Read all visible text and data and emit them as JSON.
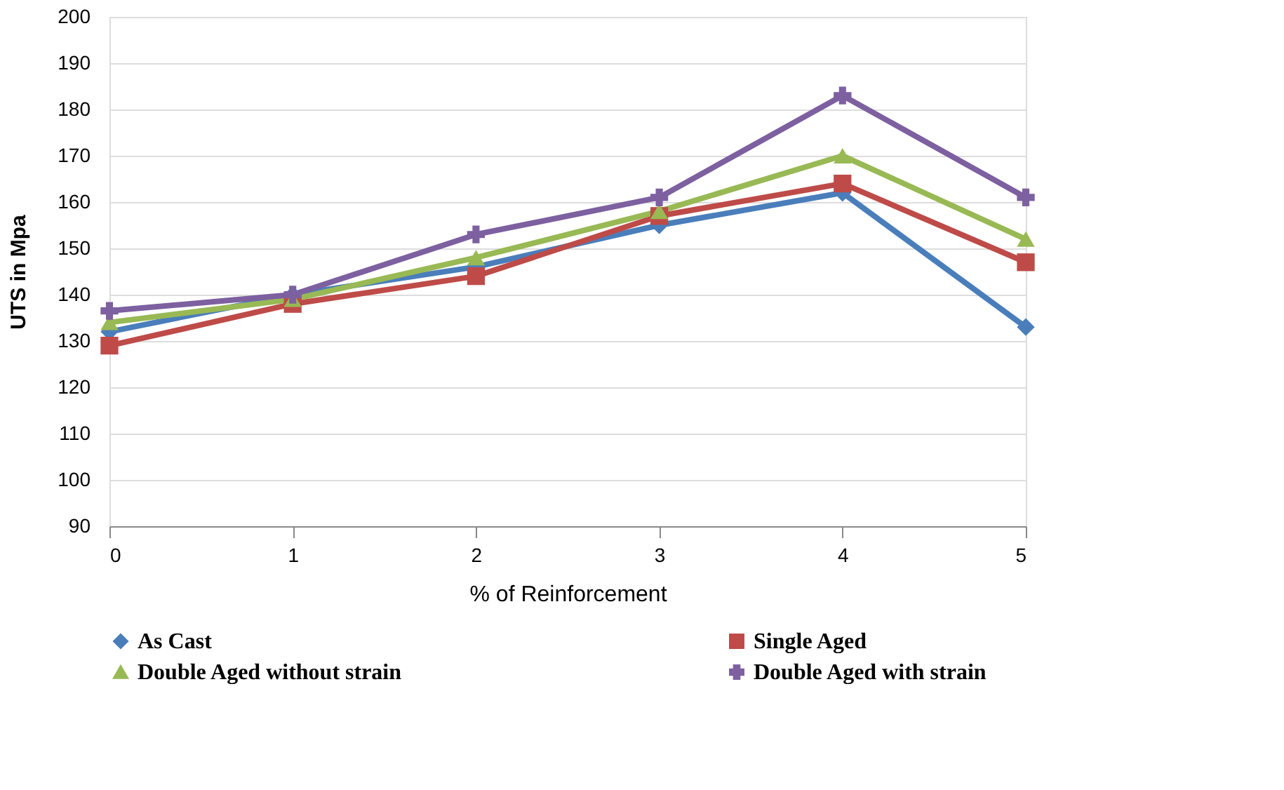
{
  "chart_data": {
    "type": "line",
    "xlabel": "% of Reinforcement",
    "ylabel": "UTS in Mpa",
    "categories": [
      "0",
      "1",
      "2",
      "3",
      "4",
      "5"
    ],
    "series": [
      {
        "name": "As Cast",
        "color": "#4a7ebb",
        "marker": "diamond",
        "values": [
          132,
          140,
          146,
          155,
          162,
          133
        ]
      },
      {
        "name": "Single Aged",
        "color": "#be4b48",
        "marker": "square",
        "values": [
          129,
          138,
          144,
          157,
          164,
          147
        ]
      },
      {
        "name": "Double Aged without strain",
        "color": "#98b954",
        "marker": "triangle",
        "values": [
          134,
          139,
          148,
          158,
          170,
          152
        ]
      },
      {
        "name": "Double Aged with strain",
        "color": "#7d60a0",
        "marker": "cross",
        "values": [
          136.5,
          140,
          153,
          161,
          183,
          161
        ]
      }
    ],
    "ylim": [
      90,
      200
    ],
    "yticks": [
      90,
      100,
      110,
      120,
      130,
      140,
      150,
      160,
      170,
      180,
      190,
      200
    ],
    "grid": "y",
    "legend": "bottom",
    "line_style": "solid"
  }
}
